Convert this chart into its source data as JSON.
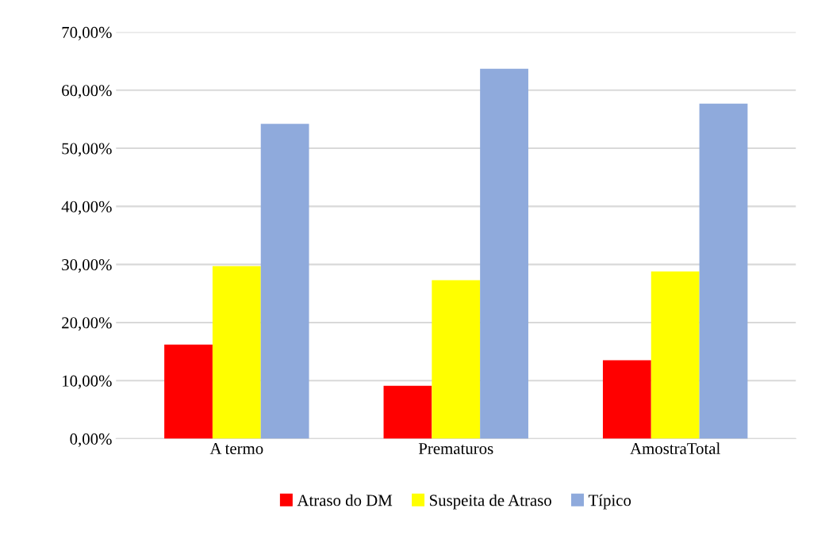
{
  "chart_data": {
    "type": "bar",
    "categories": [
      "A termo",
      "Prematuros",
      "AmostraTotal"
    ],
    "series": [
      {
        "name": "Atraso do DM",
        "color": "#ff0000",
        "values": [
          16.2,
          9.1,
          13.5
        ]
      },
      {
        "name": "Suspeita de Atraso",
        "color": "#ffff00",
        "values": [
          29.7,
          27.3,
          28.8
        ]
      },
      {
        "name": "Típico",
        "color": "#8faadc",
        "values": [
          54.2,
          63.7,
          57.7
        ]
      }
    ],
    "ylim": [
      0,
      70
    ],
    "yticks": [
      {
        "value": 0,
        "label": "0,00%"
      },
      {
        "value": 10,
        "label": "10,00%"
      },
      {
        "value": 20,
        "label": "20,00%"
      },
      {
        "value": 30,
        "label": "30,00%"
      },
      {
        "value": 40,
        "label": "40,00%"
      },
      {
        "value": 50,
        "label": "50,00%"
      },
      {
        "value": 60,
        "label": "60,00%"
      },
      {
        "value": 70,
        "label": "70,00%"
      }
    ],
    "grid": "y",
    "legend": "bottom"
  }
}
